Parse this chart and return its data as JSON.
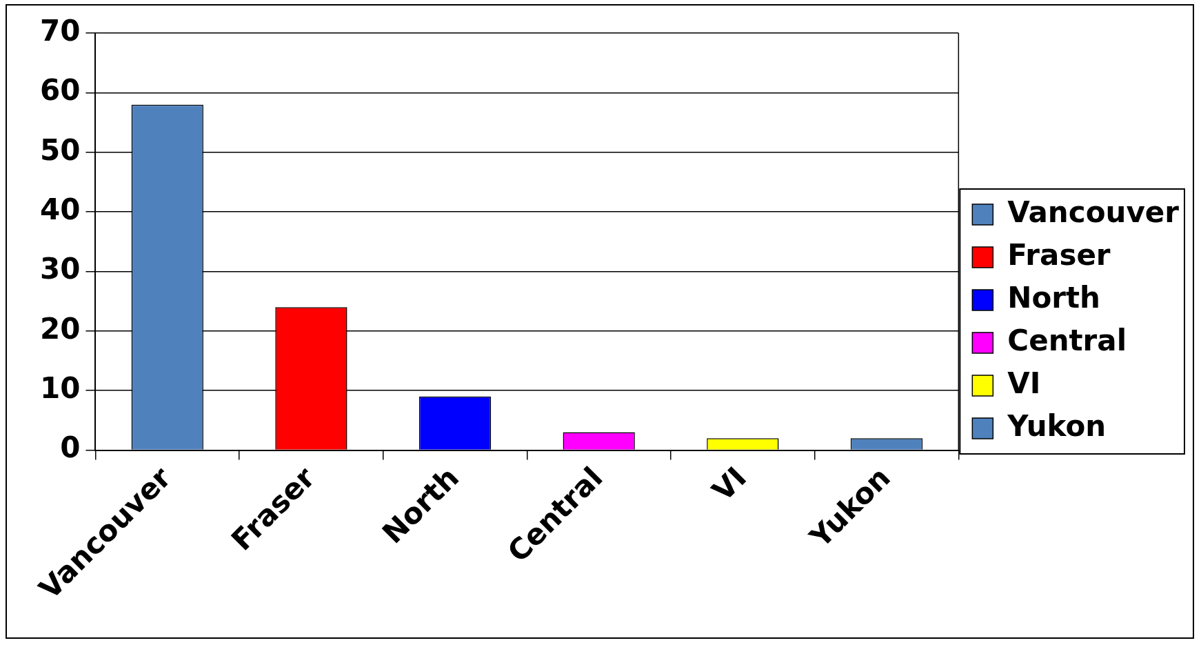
{
  "chart_data": {
    "type": "bar",
    "categories": [
      "Vancouver",
      "Fraser",
      "North",
      "Central",
      "VI",
      "Yukon"
    ],
    "series": [
      {
        "name": "Vancouver",
        "color": "#4f81bd",
        "values": [
          58,
          null,
          null,
          null,
          null,
          null
        ]
      },
      {
        "name": "Fraser",
        "color": "#ff0000",
        "values": [
          null,
          24,
          null,
          null,
          null,
          null
        ]
      },
      {
        "name": "North",
        "color": "#0000ff",
        "values": [
          null,
          null,
          9,
          null,
          null,
          null
        ]
      },
      {
        "name": "Central",
        "color": "#ff00ff",
        "values": [
          null,
          null,
          null,
          3,
          null,
          null
        ]
      },
      {
        "name": "VI",
        "color": "#ffff00",
        "values": [
          null,
          null,
          null,
          null,
          2,
          null
        ]
      },
      {
        "name": "Yukon",
        "color": "#4f81bd",
        "values": [
          null,
          null,
          null,
          null,
          null,
          2
        ]
      }
    ],
    "ylim": [
      0,
      70
    ],
    "yticks": [
      0,
      10,
      20,
      30,
      40,
      50,
      60,
      70
    ],
    "grid": "y",
    "legend": "right"
  }
}
